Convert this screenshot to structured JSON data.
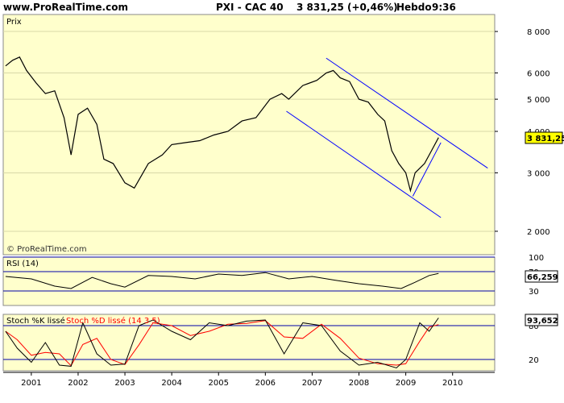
{
  "header": {
    "site": "www.ProRealTime.com",
    "instrument": "PXI - CAC 40",
    "quote": "3 831,25 (+0,46%)",
    "period": "Hebdo",
    "time": "9:36"
  },
  "panels": {
    "price": {
      "label": "Prix",
      "watermark": "© ProRealTime.com",
      "last_value": "3 831,25"
    },
    "rsi": {
      "label": "RSI (14)",
      "last_value": "66,259"
    },
    "stoch": {
      "label_k": "Stoch %K lissé",
      "label_d": "Stoch %D lissé (14 3 5)",
      "last_value": "93,652"
    }
  },
  "colors": {
    "panel_bg": "#ffffcc",
    "channel": "#0000ff",
    "price_line": "#000000",
    "stoch_d": "#ff0000",
    "value_box_price": "#ffff00"
  },
  "chart_data": [
    {
      "type": "line",
      "panel": "price",
      "y_scale": "log",
      "ylim": [
        1700,
        9000
      ],
      "y_ticks": [
        2000,
        3000,
        4000,
        5000,
        6000,
        8000
      ],
      "y_tick_labels": [
        "2 000",
        "3 000",
        "4 000",
        "5 000",
        "6 000",
        "8 000"
      ],
      "x_ticks": [
        2001,
        2002,
        2003,
        2004,
        2005,
        2006,
        2007,
        2008,
        2009,
        2010
      ],
      "xlim": [
        2000.4,
        2010.9
      ],
      "x": [
        2000.45,
        2000.6,
        2000.75,
        2000.9,
        2001.1,
        2001.3,
        2001.5,
        2001.7,
        2001.85,
        2002.0,
        2002.2,
        2002.4,
        2002.55,
        2002.75,
        2003.0,
        2003.2,
        2003.5,
        2003.8,
        2004.0,
        2004.3,
        2004.6,
        2004.9,
        2005.2,
        2005.5,
        2005.8,
        2006.1,
        2006.35,
        2006.5,
        2006.8,
        2007.1,
        2007.3,
        2007.45,
        2007.6,
        2007.8,
        2008.0,
        2008.2,
        2008.4,
        2008.55,
        2008.7,
        2008.85,
        2009.0,
        2009.1,
        2009.2,
        2009.4,
        2009.55,
        2009.7
      ],
      "values": [
        6300,
        6550,
        6700,
        6100,
        5600,
        5200,
        5300,
        4400,
        3400,
        4500,
        4700,
        4200,
        3300,
        3200,
        2800,
        2700,
        3200,
        3400,
        3650,
        3700,
        3750,
        3900,
        4000,
        4300,
        4400,
        5000,
        5200,
        5000,
        5500,
        5700,
        6000,
        6100,
        5800,
        5650,
        5000,
        4900,
        4500,
        4300,
        3500,
        3200,
        3000,
        2650,
        3000,
        3200,
        3500,
        3831.25
      ]
    },
    {
      "type": "line",
      "panel": "price-channel",
      "series": [
        {
          "x": [
            2007.3,
            2010.75
          ],
          "values": [
            6650,
            3100
          ]
        },
        {
          "x": [
            2006.45,
            2009.75
          ],
          "values": [
            4600,
            2200
          ]
        },
        {
          "x": [
            2009.15,
            2009.75
          ],
          "values": [
            2550,
            3700
          ]
        }
      ]
    },
    {
      "type": "line",
      "panel": "rsi",
      "ylim": [
        0,
        100
      ],
      "y_ticks": [
        30,
        70,
        100
      ],
      "y_tick_labels": [
        "30",
        "70",
        "100"
      ],
      "x": [
        2000.45,
        2001.0,
        2001.5,
        2001.85,
        2002.3,
        2002.7,
        2003.0,
        2003.5,
        2004.0,
        2004.5,
        2005.0,
        2005.5,
        2006.0,
        2006.5,
        2007.0,
        2007.5,
        2008.0,
        2008.5,
        2008.9,
        2009.2,
        2009.5,
        2009.7
      ],
      "values": [
        60,
        55,
        40,
        35,
        58,
        45,
        38,
        62,
        60,
        55,
        65,
        62,
        68,
        55,
        60,
        52,
        45,
        40,
        35,
        48,
        62,
        66.259
      ]
    },
    {
      "type": "line",
      "panel": "stoch",
      "ylim": [
        0,
        100
      ],
      "y_ticks": [
        20,
        80
      ],
      "y_tick_labels": [
        "20",
        "80"
      ],
      "x": [
        2000.45,
        2000.7,
        2001.0,
        2001.3,
        2001.6,
        2001.85,
        2002.1,
        2002.4,
        2002.7,
        2003.0,
        2003.3,
        2003.6,
        2004.0,
        2004.4,
        2004.8,
        2005.2,
        2005.6,
        2006.0,
        2006.4,
        2006.8,
        2007.2,
        2007.6,
        2008.0,
        2008.4,
        2008.8,
        2009.0,
        2009.3,
        2009.5,
        2009.7
      ],
      "values": [
        70,
        40,
        15,
        50,
        10,
        8,
        85,
        30,
        10,
        12,
        80,
        90,
        70,
        55,
        85,
        80,
        88,
        90,
        30,
        85,
        80,
        35,
        10,
        15,
        5,
        20,
        85,
        70,
        93.652
      ]
    }
  ]
}
